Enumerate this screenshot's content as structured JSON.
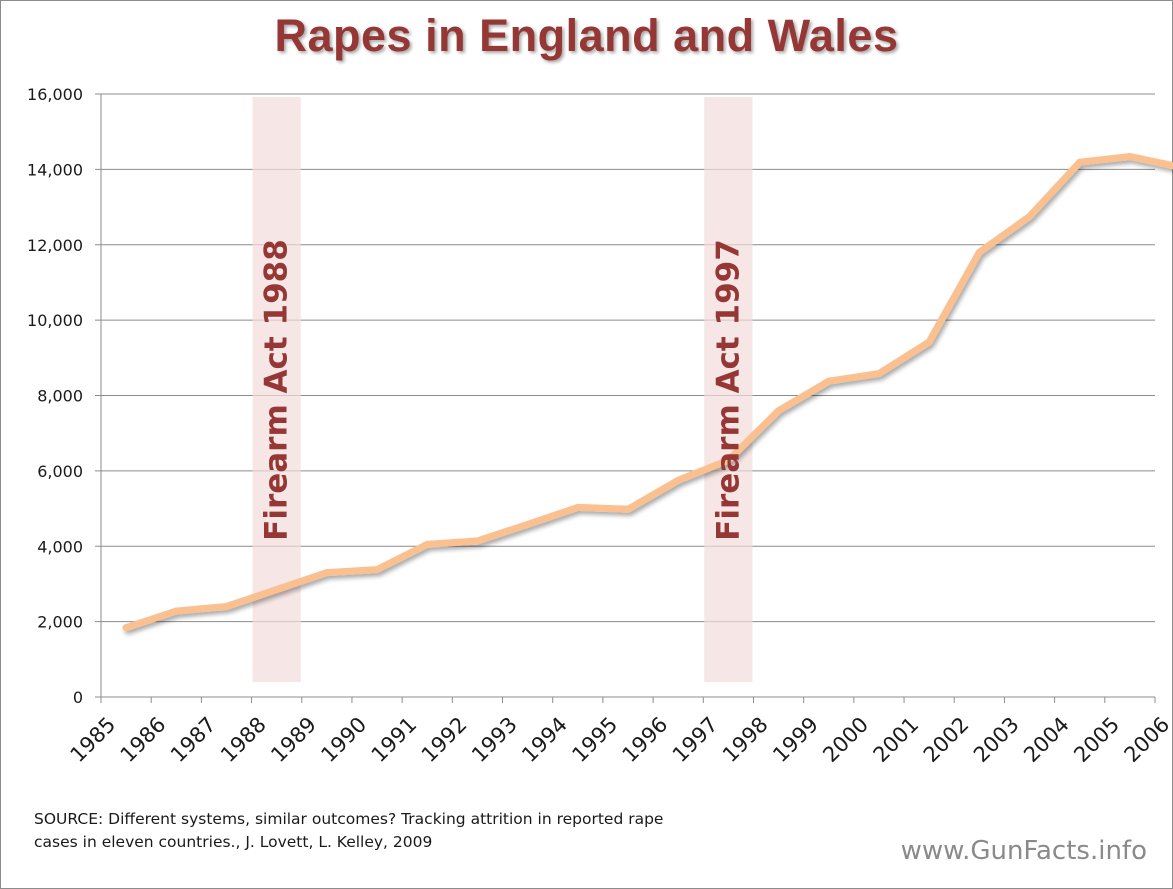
{
  "chart_data": {
    "type": "line",
    "title": "Rapes in England and Wales",
    "xlabel": "",
    "ylabel": "",
    "ylim": [
      0,
      16000
    ],
    "yticks": [
      "0",
      "2,000",
      "4,000",
      "6,000",
      "8,000",
      "10,000",
      "12,000",
      "14,000",
      "16,000"
    ],
    "grid": true,
    "legend": "none",
    "x": [
      "1985",
      "1986",
      "1987",
      "1988",
      "1989",
      "1990",
      "1991",
      "1992",
      "1993",
      "1994",
      "1995",
      "1996",
      "1997",
      "1998",
      "1999",
      "2000",
      "2001",
      "2002",
      "2003",
      "2004",
      "2005",
      "2006"
    ],
    "series": [
      {
        "values": [
          1840,
          2280,
          2400,
          2850,
          3300,
          3380,
          4050,
          4140,
          4580,
          5030,
          4980,
          5750,
          6280,
          7600,
          8380,
          8580,
          9420,
          11800,
          12750,
          14190,
          14340,
          14060
        ],
        "color": "#fac090"
      }
    ],
    "annotations": [
      {
        "label": "Firearm Act 1988",
        "x": "1988"
      },
      {
        "label": "Firearm Act 1997",
        "x": "1997"
      }
    ],
    "band_color": "#f2dcdb",
    "annotation_color": "#953735"
  },
  "source": {
    "line1": "SOURCE: Different systems, similar outcomes? Tracking attrition in reported rape",
    "line2": "cases in eleven countries., J. Lovett, L. Kelley, 2009"
  },
  "watermark": "www.GunFacts.info"
}
